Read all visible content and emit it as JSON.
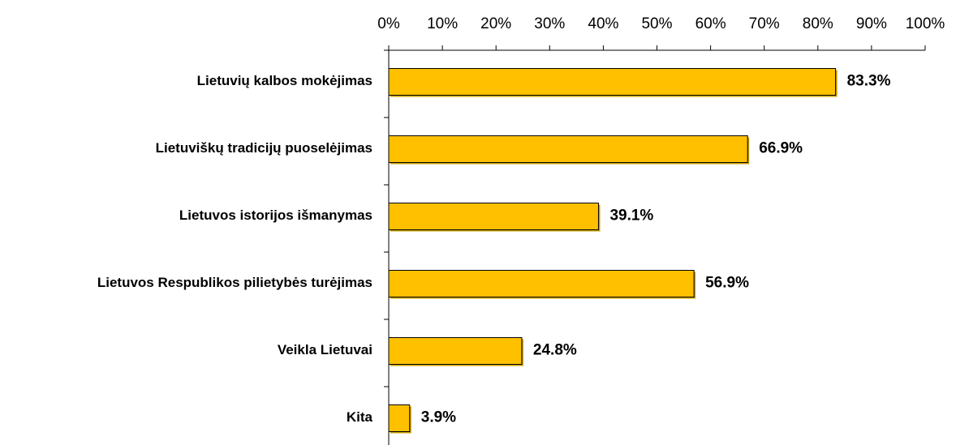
{
  "chart_data": {
    "type": "bar",
    "orientation": "horizontal",
    "categories": [
      "Lietuvių kalbos mokėjimas",
      "Lietuviškų tradicijų puoselėjimas",
      "Lietuvos istorijos išmanymas",
      "Lietuvos Respublikos pilietybės turėjimas",
      "Veikla Lietuvai",
      "Kita"
    ],
    "values": [
      83.3,
      66.9,
      39.1,
      56.9,
      24.8,
      3.9
    ],
    "value_labels": [
      "83.3%",
      "66.9%",
      "39.1%",
      "56.9%",
      "24.8%",
      "3.9%"
    ],
    "color": "#ffc000",
    "xlim": [
      0,
      100
    ],
    "xticks": [
      {
        "value": 0,
        "label": "0%"
      },
      {
        "value": 10,
        "label": "10%"
      },
      {
        "value": 20,
        "label": "20%"
      },
      {
        "value": 30,
        "label": "30%"
      },
      {
        "value": 40,
        "label": "40%"
      },
      {
        "value": 50,
        "label": "50%"
      },
      {
        "value": 60,
        "label": "60%"
      },
      {
        "value": 70,
        "label": "70%"
      },
      {
        "value": 80,
        "label": "80%"
      },
      {
        "value": 90,
        "label": "90%"
      },
      {
        "value": 100,
        "label": "100%"
      }
    ],
    "grid": false
  }
}
